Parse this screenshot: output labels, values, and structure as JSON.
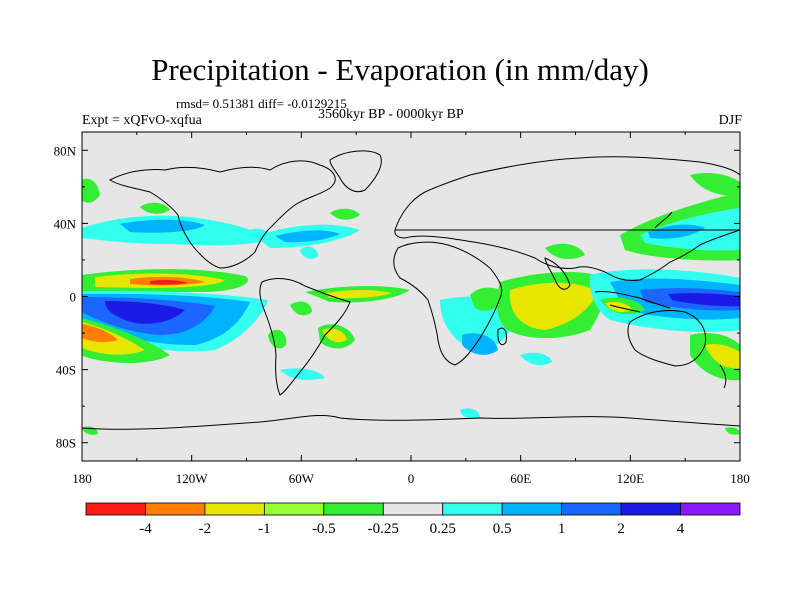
{
  "title": "Precipitation - Evaporation (in mm/day)",
  "stats": "rmsd= 0.51381 diff= -0.0129215",
  "period": "3560kyr BP - 0000kyr BP",
  "experiment": "Expt = xQFvO-xqfua",
  "season": "DJF",
  "lon_labels": [
    "180",
    "120W",
    "60W",
    "0",
    "60E",
    "120E",
    "180"
  ],
  "lat_labels": [
    "80N",
    "40N",
    "0",
    "40S",
    "80S"
  ],
  "colorbar": {
    "colors": [
      "#ff1a1a",
      "#ff8000",
      "#e6e600",
      "#99ff33",
      "#33ee33",
      "#e6e6e6",
      "#33ffee",
      "#00b3ff",
      "#1a66ff",
      "#1a1ae6",
      "#8c1aff"
    ],
    "labels": [
      "-4",
      "-2",
      "-1",
      "-0.5",
      "-0.25",
      "0.25",
      "0.5",
      "1",
      "2",
      "4"
    ]
  },
  "background_color": "#e6e6e6"
}
